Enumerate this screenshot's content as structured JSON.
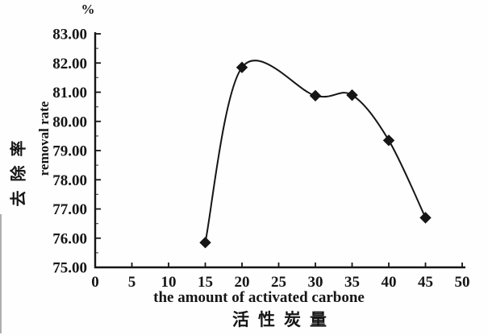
{
  "figure": {
    "unit_label": "%",
    "ylabel_zh": "去除率",
    "ylabel_en": "removal rate",
    "xlabel_en": "the amount of activated carbone",
    "xlabel_zh": "活性炭量"
  },
  "colors": {
    "ink": "#161616",
    "background": "#fefefe"
  },
  "chart_data": {
    "type": "line",
    "curve_style": "smooth",
    "marker": "filled-diamond",
    "title": "",
    "xlabel": "the amount of activated carbone (活性炭量)",
    "ylabel": "去除率 removal rate (%)",
    "x": [
      15,
      20,
      30,
      35,
      40,
      45
    ],
    "y": [
      75.85,
      81.85,
      80.88,
      80.9,
      79.35,
      76.7
    ],
    "xlim": [
      0,
      50
    ],
    "ylim": [
      75,
      83
    ],
    "x_ticks": [
      0,
      5,
      10,
      15,
      20,
      25,
      30,
      35,
      40,
      45,
      50
    ],
    "y_ticks": [
      75,
      76,
      77,
      78,
      79,
      80,
      81,
      82,
      83
    ],
    "x_tick_labels": [
      "0",
      "5",
      "10",
      "15",
      "20",
      "25",
      "30",
      "35",
      "40",
      "45",
      "50"
    ],
    "y_tick_labels": [
      "75.00",
      "76.00",
      "77.00",
      "78.00",
      "79.00",
      "80.00",
      "81.00",
      "82.00",
      "83.00"
    ],
    "y_minor_tick_step": 0.5,
    "grid": false,
    "legend": "none"
  }
}
